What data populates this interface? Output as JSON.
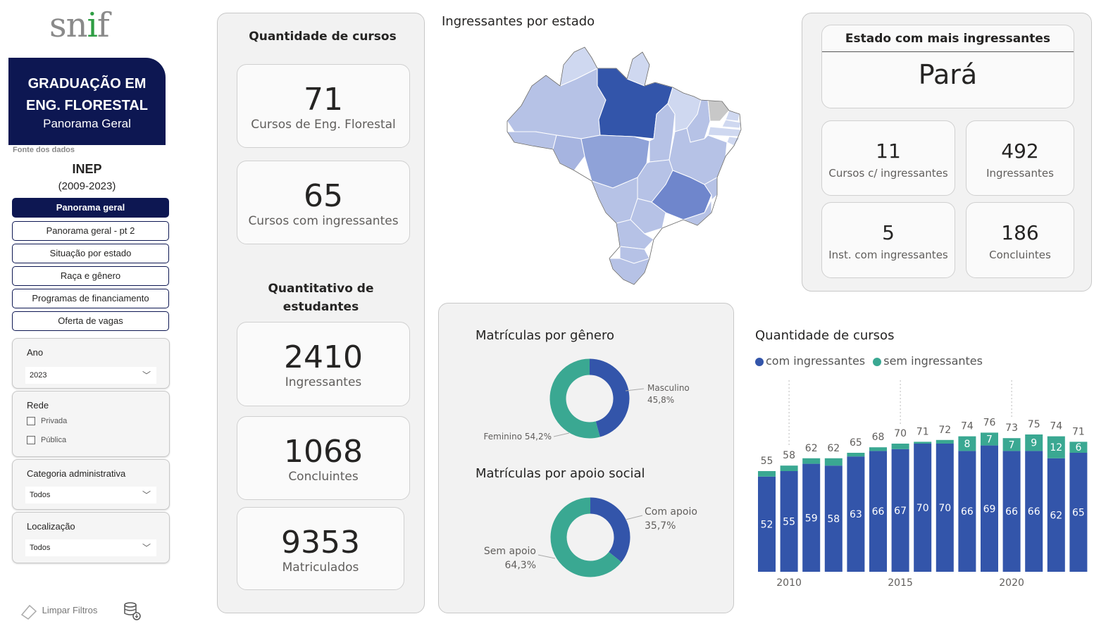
{
  "logo": {
    "p1": "sn",
    "p2": "i",
    "p3": "f"
  },
  "title": {
    "line1": "GRADUAÇÃO EM",
    "line2": "ENG. FLORESTAL",
    "line3": "Panorama Geral"
  },
  "source": {
    "label": "Fonte dos dados",
    "name": "INEP",
    "years": "(2009-2023)"
  },
  "nav": [
    {
      "label": "Panorama geral",
      "active": true
    },
    {
      "label": "Panorama geral - pt 2"
    },
    {
      "label": "Situação por estado"
    },
    {
      "label": "Raça e gênero"
    },
    {
      "label": "Programas de financiamento"
    },
    {
      "label": "Oferta de vagas"
    }
  ],
  "filters": {
    "ano": {
      "title": "Ano",
      "value": "2023"
    },
    "rede": {
      "title": "Rede",
      "options": [
        "Privada",
        "Pública"
      ]
    },
    "categoria": {
      "title": "Categoria administrativa",
      "value": "Todos"
    },
    "localizacao": {
      "title": "Localização",
      "value": "Todos"
    }
  },
  "tools": {
    "clear": "Limpar Filtros"
  },
  "courses": {
    "title": "Quantidade de cursos",
    "total": {
      "value": "71",
      "label": "Cursos de Eng. Florestal"
    },
    "with_entrants": {
      "value": "65",
      "label": "Cursos com ingressantes"
    }
  },
  "students": {
    "title_l1": "Quantitativo de",
    "title_l2": "estudantes",
    "entrants": {
      "value": "2410",
      "label": "Ingressantes"
    },
    "graduates": {
      "value": "1068",
      "label": "Concluintes"
    },
    "enrolled": {
      "value": "9353",
      "label": "Matriculados"
    }
  },
  "map": {
    "title": "Ingressantes por estado"
  },
  "top_state": {
    "title": "Estado com mais ingressantes",
    "name": "Pará",
    "courses": {
      "value": "11",
      "label": "Cursos c/ ingressantes"
    },
    "entrants": {
      "value": "492",
      "label": "Ingressantes"
    },
    "institutions": {
      "value": "5",
      "label": "Inst. com ingressantes"
    },
    "graduates": {
      "value": "186",
      "label": "Concluintes"
    }
  },
  "gender": {
    "title": "Matrículas por gênero",
    "male": {
      "label": "Masculino",
      "pct": "45,8%",
      "value": 45.8
    },
    "female": {
      "label": "Feminino 54,2%",
      "value": 54.2
    }
  },
  "support": {
    "title": "Matrículas por apoio social",
    "with": {
      "label": "Com apoio",
      "pct": "35,7%",
      "value": 35.7
    },
    "without": {
      "label": "Sem apoio",
      "pct": "64,3%",
      "value": 64.3
    }
  },
  "colors": {
    "navy": "#0d1752",
    "blue": "#3355aa",
    "teal": "#3aa892",
    "grey": "#c8c8c8"
  },
  "chart_data": {
    "type": "bar",
    "title": "Quantidade de cursos",
    "stacked": true,
    "categories": [
      "2009",
      "2010",
      "2011",
      "2012",
      "2013",
      "2014",
      "2015",
      "2016",
      "2017",
      "2018",
      "2019",
      "2020",
      "2021",
      "2022",
      "2023"
    ],
    "tick_labels": {
      "2010": "2010",
      "2015": "2015",
      "2020": "2020"
    },
    "series": [
      {
        "name": "com ingressantes",
        "color": "#3355aa",
        "values": [
          52,
          55,
          59,
          58,
          63,
          66,
          67,
          70,
          70,
          66,
          69,
          66,
          66,
          62,
          65
        ]
      },
      {
        "name": "sem ingressantes",
        "color": "#3aa892",
        "values": [
          3,
          3,
          3,
          4,
          2,
          2,
          3,
          1,
          2,
          8,
          7,
          7,
          9,
          12,
          6
        ]
      }
    ],
    "totals": [
      55,
      58,
      62,
      62,
      65,
      68,
      70,
      71,
      72,
      74,
      76,
      73,
      75,
      74,
      71
    ],
    "legend_position": "top-left",
    "ylim": [
      0,
      80
    ]
  }
}
